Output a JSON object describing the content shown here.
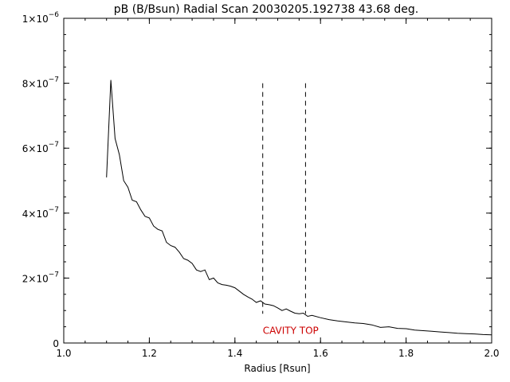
{
  "chart_data": {
    "type": "line",
    "title": "pB (B/Bsun) Radial Scan 20030205.192738 43.68 deg.",
    "xlabel": "Radius [Rsun]",
    "ylabel": "",
    "xlim": [
      1.0,
      2.0
    ],
    "ylim": [
      0,
      1e-06
    ],
    "grid": false,
    "x_ticks": [
      {
        "value": 1.0,
        "label": "1.0"
      },
      {
        "value": 1.2,
        "label": "1.2"
      },
      {
        "value": 1.4,
        "label": "1.4"
      },
      {
        "value": 1.6,
        "label": "1.6"
      },
      {
        "value": 1.8,
        "label": "1.8"
      },
      {
        "value": 2.0,
        "label": "2.0"
      }
    ],
    "y_ticks": [
      {
        "value": 0,
        "mant": "0",
        "exp": ""
      },
      {
        "value": 2e-07,
        "mant": "2×10",
        "exp": "−7"
      },
      {
        "value": 4e-07,
        "mant": "4×10",
        "exp": "−7"
      },
      {
        "value": 6e-07,
        "mant": "6×10",
        "exp": "−7"
      },
      {
        "value": 8e-07,
        "mant": "8×10",
        "exp": "−7"
      },
      {
        "value": 1e-06,
        "mant": "1×10",
        "exp": "−6"
      }
    ],
    "series": [
      {
        "x": [
          1.1,
          1.11,
          1.12,
          1.13,
          1.14,
          1.15,
          1.16,
          1.17,
          1.18,
          1.19,
          1.2,
          1.21,
          1.22,
          1.23,
          1.24,
          1.25,
          1.26,
          1.27,
          1.28,
          1.29,
          1.3,
          1.31,
          1.32,
          1.33,
          1.34,
          1.35,
          1.36,
          1.37,
          1.38,
          1.39,
          1.4,
          1.41,
          1.42,
          1.43,
          1.44,
          1.45,
          1.46,
          1.47,
          1.48,
          1.49,
          1.5,
          1.51,
          1.52,
          1.53,
          1.54,
          1.55,
          1.56,
          1.57,
          1.58,
          1.6,
          1.62,
          1.64,
          1.66,
          1.68,
          1.7,
          1.72,
          1.74,
          1.76,
          1.78,
          1.8,
          1.82,
          1.84,
          1.86,
          1.88,
          1.9,
          1.92,
          1.94,
          1.96,
          1.98,
          2.0
        ],
        "y": [
          5.1e-07,
          8.1e-07,
          6.3e-07,
          5.8e-07,
          5e-07,
          4.8e-07,
          4.4e-07,
          4.35e-07,
          4.1e-07,
          3.9e-07,
          3.85e-07,
          3.6e-07,
          3.5e-07,
          3.45e-07,
          3.1e-07,
          3e-07,
          2.95e-07,
          2.8e-07,
          2.6e-07,
          2.55e-07,
          2.45e-07,
          2.25e-07,
          2.2e-07,
          2.25e-07,
          1.95e-07,
          2e-07,
          1.85e-07,
          1.8e-07,
          1.78e-07,
          1.75e-07,
          1.7e-07,
          1.6e-07,
          1.5e-07,
          1.42e-07,
          1.35e-07,
          1.25e-07,
          1.3e-07,
          1.2e-07,
          1.18e-07,
          1.15e-07,
          1.08e-07,
          1e-07,
          1.05e-07,
          9.8e-08,
          9.2e-08,
          9e-08,
          9.2e-08,
          8.2e-08,
          8.5e-08,
          7.8e-08,
          7.2e-08,
          6.8e-08,
          6.5e-08,
          6.2e-08,
          6e-08,
          5.6e-08,
          4.8e-08,
          5e-08,
          4.5e-08,
          4.4e-08,
          4e-08,
          3.8e-08,
          3.6e-08,
          3.4e-08,
          3.2e-08,
          3e-08,
          2.9e-08,
          2.8e-08,
          2.6e-08,
          2.5e-08
        ]
      }
    ],
    "vlines": [
      {
        "x": 1.465,
        "y_top": 8e-07,
        "y_bottom": 9e-08,
        "style": "dashed"
      },
      {
        "x": 1.565,
        "y_top": 8e-07,
        "y_bottom": 9e-08,
        "style": "dashed"
      }
    ],
    "annotations": [
      {
        "text": "CAVITY TOP",
        "x": 1.465,
        "y": 2.8e-08,
        "color": "#cc0000"
      }
    ]
  }
}
